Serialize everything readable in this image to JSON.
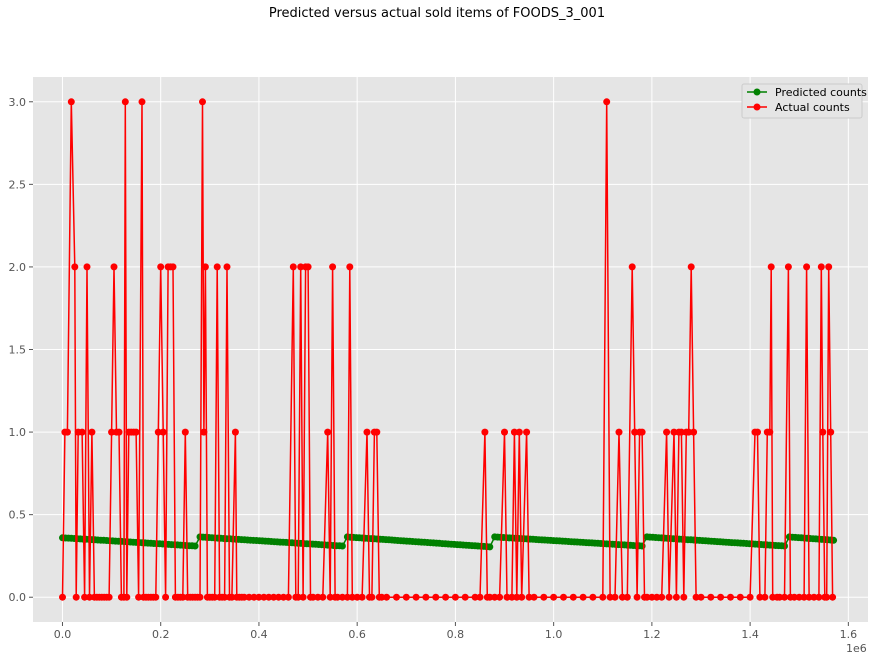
{
  "chart_data": {
    "type": "line",
    "title": "Predicted versus actual sold items of FOODS_3_001",
    "xlabel": "",
    "ylabel": "",
    "x_offset_label": "1e6",
    "xlim": [
      -60000,
      1640000
    ],
    "ylim": [
      -0.15,
      3.15
    ],
    "x_ticks": [
      0,
      200000,
      400000,
      600000,
      800000,
      1000000,
      1200000,
      1400000,
      1600000
    ],
    "x_tick_labels": [
      "0.0",
      "0.2",
      "0.4",
      "0.6",
      "0.8",
      "1.0",
      "1.2",
      "1.4",
      "1.6"
    ],
    "y_ticks": [
      0.0,
      0.5,
      1.0,
      1.5,
      2.0,
      2.5,
      3.0
    ],
    "y_tick_labels": [
      "0.0",
      "0.5",
      "1.0",
      "1.5",
      "2.0",
      "2.5",
      "3.0"
    ],
    "grid": true,
    "legend_position": "top-right",
    "series": [
      {
        "name": "Predicted counts",
        "color": "#008000",
        "marker": "circle",
        "segments": [
          {
            "x0": 0,
            "x1": 270000,
            "y0": 0.36,
            "y1": 0.31
          },
          {
            "x0": 280000,
            "x1": 570000,
            "y0": 0.365,
            "y1": 0.31
          },
          {
            "x0": 580000,
            "x1": 870000,
            "y0": 0.365,
            "y1": 0.305
          },
          {
            "x0": 880000,
            "x1": 1180000,
            "y0": 0.365,
            "y1": 0.31
          },
          {
            "x0": 1190000,
            "x1": 1470000,
            "y0": 0.365,
            "y1": 0.31
          },
          {
            "x0": 1480000,
            "x1": 1570000,
            "y0": 0.365,
            "y1": 0.345
          }
        ]
      },
      {
        "name": "Actual counts",
        "color": "#ff0000",
        "marker": "circle",
        "points": [
          [
            0,
            0
          ],
          [
            5000,
            1
          ],
          [
            10000,
            1
          ],
          [
            18000,
            3
          ],
          [
            25000,
            2
          ],
          [
            28000,
            0
          ],
          [
            32000,
            1
          ],
          [
            40000,
            1
          ],
          [
            45000,
            0
          ],
          [
            50000,
            2
          ],
          [
            55000,
            0
          ],
          [
            60000,
            1
          ],
          [
            65000,
            0
          ],
          [
            70000,
            0
          ],
          [
            75000,
            0
          ],
          [
            80000,
            0
          ],
          [
            85000,
            0
          ],
          [
            90000,
            0
          ],
          [
            95000,
            0
          ],
          [
            105000,
            2
          ],
          [
            100000,
            1
          ],
          [
            110000,
            1
          ],
          [
            115000,
            1
          ],
          [
            120000,
            0
          ],
          [
            125000,
            0
          ],
          [
            128000,
            3
          ],
          [
            131000,
            0
          ],
          [
            135000,
            1
          ],
          [
            140000,
            1
          ],
          [
            145000,
            1
          ],
          [
            150000,
            1
          ],
          [
            155000,
            0
          ],
          [
            162000,
            3
          ],
          [
            165000,
            0
          ],
          [
            170000,
            0
          ],
          [
            175000,
            0
          ],
          [
            180000,
            0
          ],
          [
            185000,
            0
          ],
          [
            190000,
            0
          ],
          [
            195000,
            1
          ],
          [
            200000,
            2
          ],
          [
            205000,
            1
          ],
          [
            210000,
            0
          ],
          [
            215000,
            2
          ],
          [
            220000,
            2
          ],
          [
            225000,
            2
          ],
          [
            230000,
            0
          ],
          [
            235000,
            0
          ],
          [
            240000,
            0
          ],
          [
            245000,
            0
          ],
          [
            250000,
            1
          ],
          [
            255000,
            0
          ],
          [
            260000,
            0
          ],
          [
            265000,
            0
          ],
          [
            270000,
            0
          ],
          [
            275000,
            0
          ],
          [
            280000,
            0
          ],
          [
            285000,
            3
          ],
          [
            288000,
            1
          ],
          [
            291000,
            2
          ],
          [
            295000,
            0
          ],
          [
            300000,
            0
          ],
          [
            305000,
            0
          ],
          [
            310000,
            0
          ],
          [
            315000,
            2
          ],
          [
            320000,
            0
          ],
          [
            325000,
            0
          ],
          [
            330000,
            0
          ],
          [
            335000,
            2
          ],
          [
            340000,
            0
          ],
          [
            345000,
            0
          ],
          [
            352000,
            1
          ],
          [
            355000,
            0
          ],
          [
            360000,
            0
          ],
          [
            365000,
            0
          ],
          [
            370000,
            0
          ],
          [
            380000,
            0
          ],
          [
            390000,
            0
          ],
          [
            400000,
            0
          ],
          [
            410000,
            0
          ],
          [
            420000,
            0
          ],
          [
            430000,
            0
          ],
          [
            440000,
            0
          ],
          [
            450000,
            0
          ],
          [
            460000,
            0
          ],
          [
            470000,
            2
          ],
          [
            475000,
            0
          ],
          [
            480000,
            0
          ],
          [
            485000,
            2
          ],
          [
            490000,
            0
          ],
          [
            495000,
            2
          ],
          [
            500000,
            2
          ],
          [
            505000,
            0
          ],
          [
            510000,
            0
          ],
          [
            520000,
            0
          ],
          [
            530000,
            0
          ],
          [
            540000,
            1
          ],
          [
            545000,
            0
          ],
          [
            550000,
            2
          ],
          [
            555000,
            0
          ],
          [
            560000,
            0
          ],
          [
            570000,
            0
          ],
          [
            580000,
            0
          ],
          [
            585000,
            2
          ],
          [
            590000,
            0
          ],
          [
            600000,
            0
          ],
          [
            610000,
            0
          ],
          [
            620000,
            1
          ],
          [
            625000,
            0
          ],
          [
            630000,
            0
          ],
          [
            635000,
            1
          ],
          [
            640000,
            1
          ],
          [
            645000,
            0
          ],
          [
            650000,
            0
          ],
          [
            660000,
            0
          ],
          [
            680000,
            0
          ],
          [
            700000,
            0
          ],
          [
            720000,
            0
          ],
          [
            740000,
            0
          ],
          [
            760000,
            0
          ],
          [
            780000,
            0
          ],
          [
            800000,
            0
          ],
          [
            820000,
            0
          ],
          [
            840000,
            0
          ],
          [
            850000,
            0
          ],
          [
            860000,
            1
          ],
          [
            865000,
            0
          ],
          [
            870000,
            0
          ],
          [
            880000,
            0
          ],
          [
            890000,
            0
          ],
          [
            900000,
            1
          ],
          [
            905000,
            0
          ],
          [
            915000,
            0
          ],
          [
            920000,
            1
          ],
          [
            925000,
            0
          ],
          [
            930000,
            1
          ],
          [
            935000,
            0
          ],
          [
            945000,
            1
          ],
          [
            950000,
            0
          ],
          [
            960000,
            0
          ],
          [
            980000,
            0
          ],
          [
            1000000,
            0
          ],
          [
            1020000,
            0
          ],
          [
            1040000,
            0
          ],
          [
            1060000,
            0
          ],
          [
            1080000,
            0
          ],
          [
            1100000,
            0
          ],
          [
            1108000,
            3
          ],
          [
            1115000,
            0
          ],
          [
            1125000,
            0
          ],
          [
            1133000,
            1
          ],
          [
            1140000,
            0
          ],
          [
            1150000,
            0
          ],
          [
            1160000,
            2
          ],
          [
            1165000,
            1
          ],
          [
            1170000,
            0
          ],
          [
            1175000,
            1
          ],
          [
            1180000,
            1
          ],
          [
            1185000,
            0
          ],
          [
            1190000,
            0
          ],
          [
            1200000,
            0
          ],
          [
            1210000,
            0
          ],
          [
            1220000,
            0
          ],
          [
            1230000,
            1
          ],
          [
            1235000,
            0
          ],
          [
            1245000,
            1
          ],
          [
            1250000,
            0
          ],
          [
            1255000,
            1
          ],
          [
            1260000,
            1
          ],
          [
            1265000,
            0
          ],
          [
            1270000,
            1
          ],
          [
            1275000,
            1
          ],
          [
            1280000,
            2
          ],
          [
            1285000,
            1
          ],
          [
            1290000,
            0
          ],
          [
            1300000,
            0
          ],
          [
            1320000,
            0
          ],
          [
            1340000,
            0
          ],
          [
            1360000,
            0
          ],
          [
            1380000,
            0
          ],
          [
            1400000,
            0
          ],
          [
            1410000,
            1
          ],
          [
            1415000,
            1
          ],
          [
            1420000,
            0
          ],
          [
            1430000,
            0
          ],
          [
            1435000,
            1
          ],
          [
            1440000,
            1
          ],
          [
            1443000,
            2
          ],
          [
            1446000,
            0
          ],
          [
            1455000,
            0
          ],
          [
            1460000,
            0
          ],
          [
            1470000,
            0
          ],
          [
            1478000,
            2
          ],
          [
            1482000,
            0
          ],
          [
            1490000,
            0
          ],
          [
            1500000,
            0
          ],
          [
            1510000,
            0
          ],
          [
            1515000,
            2
          ],
          [
            1520000,
            0
          ],
          [
            1530000,
            0
          ],
          [
            1540000,
            0
          ],
          [
            1545000,
            2
          ],
          [
            1548000,
            1
          ],
          [
            1552000,
            0
          ],
          [
            1556000,
            0
          ],
          [
            1560000,
            2
          ],
          [
            1564000,
            1
          ],
          [
            1568000,
            0
          ]
        ]
      }
    ]
  }
}
